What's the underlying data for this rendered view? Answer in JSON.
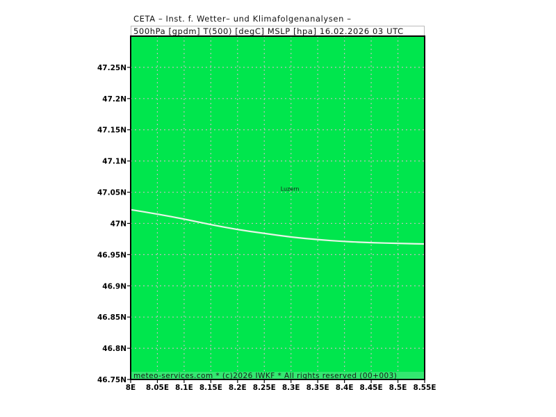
{
  "title": {
    "line1": "CETA – Inst. f. Wetter– und Klimafolgenanalysen –",
    "line2": "500hPa [gpdm] T(500) [degC] MSLP [hpa] 16.02.2026 03 UTC"
  },
  "map": {
    "x_range": [
      8.0,
      8.55
    ],
    "y_range": [
      46.75,
      47.3
    ],
    "x_ticks": [
      {
        "value": 8.0,
        "label": "8E"
      },
      {
        "value": 8.05,
        "label": "8.05E"
      },
      {
        "value": 8.1,
        "label": "8.1E"
      },
      {
        "value": 8.15,
        "label": "8.15E"
      },
      {
        "value": 8.2,
        "label": "8.2E"
      },
      {
        "value": 8.25,
        "label": "8.25E"
      },
      {
        "value": 8.3,
        "label": "8.3E"
      },
      {
        "value": 8.35,
        "label": "8.35E"
      },
      {
        "value": 8.4,
        "label": "8.4E"
      },
      {
        "value": 8.45,
        "label": "8.45E"
      },
      {
        "value": 8.5,
        "label": "8.5E"
      },
      {
        "value": 8.55,
        "label": "8.55E"
      }
    ],
    "y_ticks": [
      {
        "value": 46.75,
        "label": "46.75N"
      },
      {
        "value": 46.8,
        "label": "46.8N"
      },
      {
        "value": 46.85,
        "label": "46.85N"
      },
      {
        "value": 46.9,
        "label": "46.9N"
      },
      {
        "value": 46.95,
        "label": "46.95N"
      },
      {
        "value": 47.0,
        "label": "47N"
      },
      {
        "value": 47.05,
        "label": "47.05N"
      },
      {
        "value": 47.1,
        "label": "47.1N"
      },
      {
        "value": 47.15,
        "label": "47.15N"
      },
      {
        "value": 47.2,
        "label": "47.2N"
      },
      {
        "value": 47.25,
        "label": "47.25N"
      }
    ],
    "grid": true,
    "fill_color": "#00e64d",
    "grid_color": "#bfbfbf",
    "contour_color": "#e8f5e8",
    "cities": [
      {
        "name": "Luzern",
        "lon": 8.3,
        "lat": 47.05
      }
    ],
    "contour": [
      {
        "lon": 8.0,
        "lat": 47.022
      },
      {
        "lon": 8.05,
        "lat": 47.015
      },
      {
        "lon": 8.1,
        "lat": 47.007
      },
      {
        "lon": 8.15,
        "lat": 46.998
      },
      {
        "lon": 8.2,
        "lat": 46.99
      },
      {
        "lon": 8.25,
        "lat": 46.984
      },
      {
        "lon": 8.3,
        "lat": 46.978
      },
      {
        "lon": 8.35,
        "lat": 46.974
      },
      {
        "lon": 8.4,
        "lat": 46.971
      },
      {
        "lon": 8.45,
        "lat": 46.969
      },
      {
        "lon": 8.5,
        "lat": 46.968
      },
      {
        "lon": 8.55,
        "lat": 46.967
      }
    ]
  },
  "footer": {
    "text": "meteo-services.com * (c)2026 IWKF * All rights reserved (00+003)",
    "background": "#33e870"
  }
}
